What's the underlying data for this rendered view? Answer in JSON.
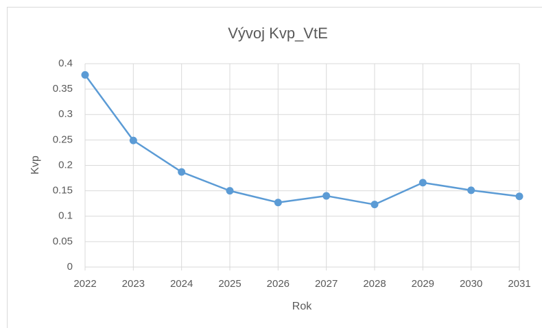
{
  "chart_data": {
    "type": "line",
    "title": "Vývoj Kvp_VtE",
    "x_label": "Rok",
    "y_label": "Kvp",
    "x": [
      2022,
      2023,
      2024,
      2025,
      2026,
      2027,
      2028,
      2029,
      2030,
      2031
    ],
    "series": [
      {
        "name": "Kvp",
        "color": "#5b9bd5",
        "values": [
          0.378,
          0.249,
          0.187,
          0.15,
          0.127,
          0.14,
          0.123,
          0.166,
          0.151,
          0.139
        ]
      }
    ],
    "xlim": [
      2022,
      2031
    ],
    "xticks": [
      2022,
      2023,
      2024,
      2025,
      2026,
      2027,
      2028,
      2029,
      2030,
      2031
    ],
    "ylim": [
      0,
      0.4
    ],
    "yticks": [
      0,
      0.05,
      0.1,
      0.15,
      0.2,
      0.25,
      0.3,
      0.35,
      0.4
    ],
    "grid": true
  }
}
